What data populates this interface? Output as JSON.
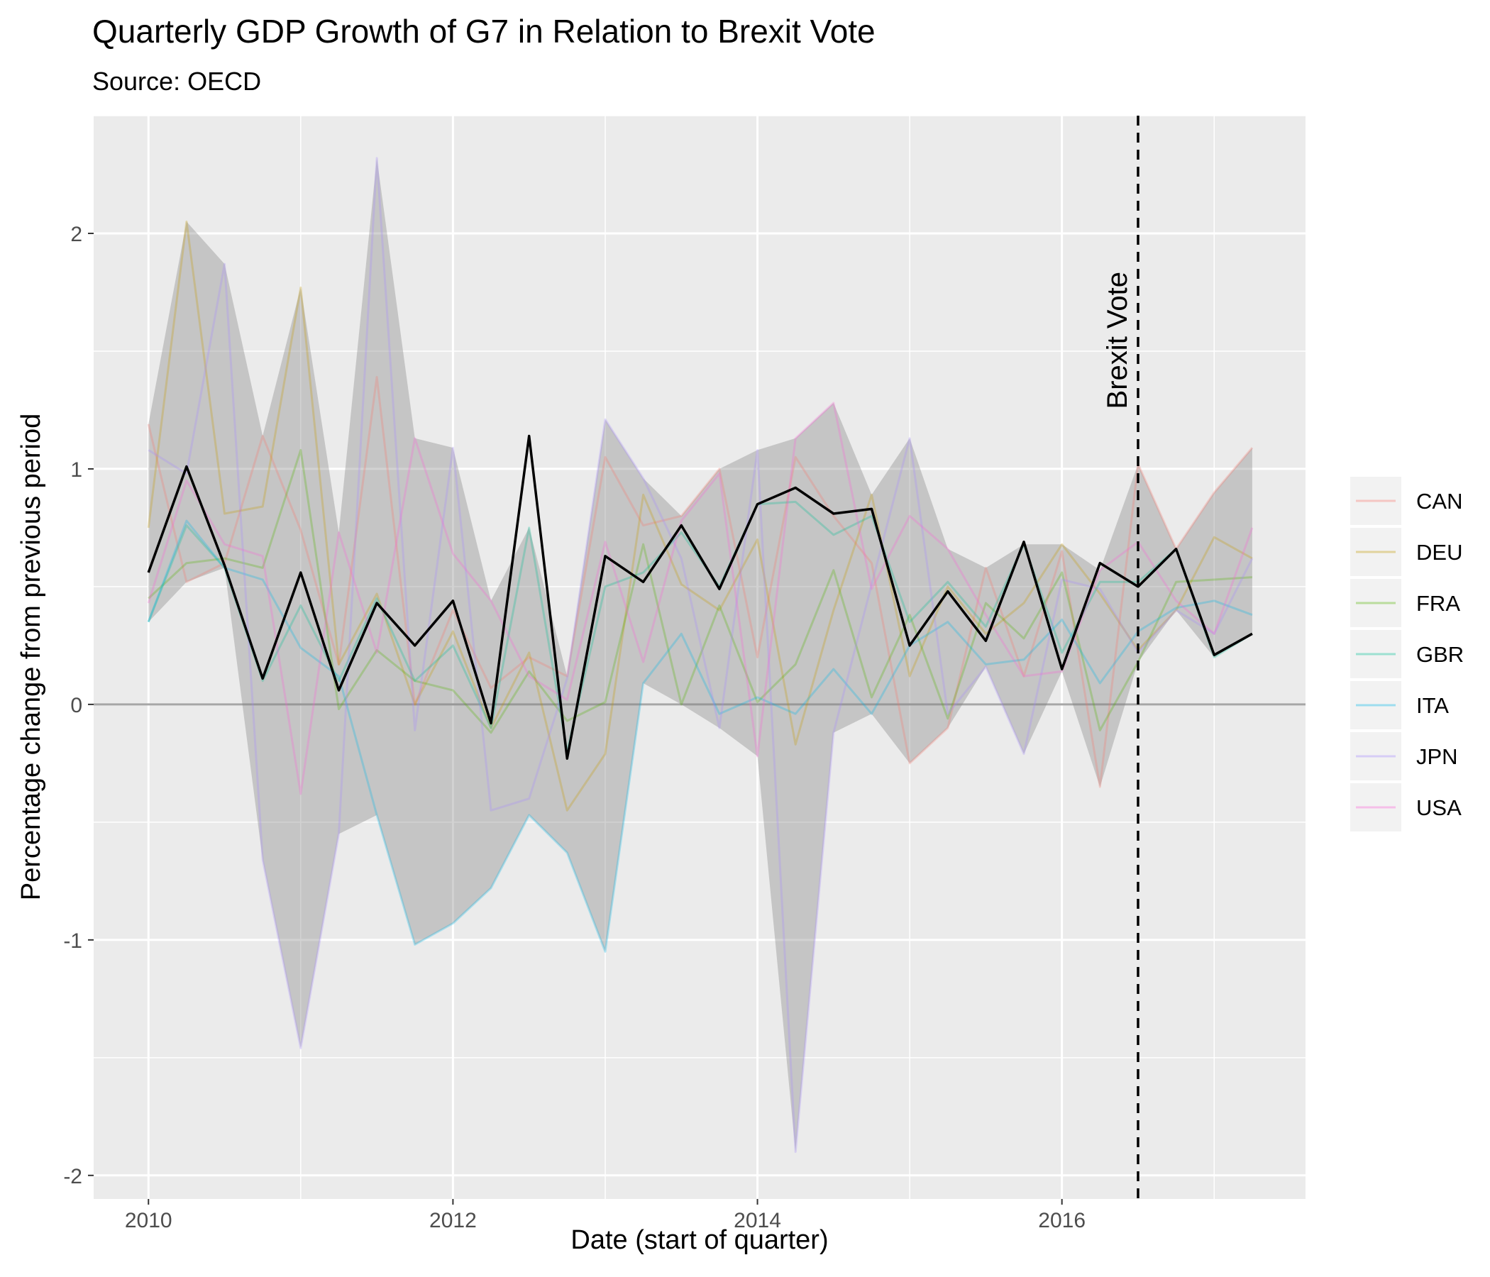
{
  "chart_data": {
    "type": "line",
    "title": "Quarterly GDP Growth of G7 in Relation to Brexit Vote",
    "subtitle": "Source: OECD",
    "xlabel": "Date (start of quarter)",
    "ylabel": "Percentage change from previous period",
    "xlim": [
      2009.64,
      2017.6
    ],
    "ylim": [
      -2.1,
      2.5
    ],
    "xticks": [
      {
        "v": 2010,
        "label": "2010"
      },
      {
        "v": 2012,
        "label": "2012"
      },
      {
        "v": 2014,
        "label": "2014"
      },
      {
        "v": 2016,
        "label": "2016"
      }
    ],
    "yticks": [
      {
        "v": -2,
        "label": "-2"
      },
      {
        "v": -1,
        "label": "-1"
      },
      {
        "v": 0,
        "label": "0"
      },
      {
        "v": 1,
        "label": "1"
      },
      {
        "v": 2,
        "label": "2"
      }
    ],
    "grid": true,
    "legend_position": "right",
    "x": [
      "2010-01-01",
      "2010-04-01",
      "2010-07-01",
      "2010-10-01",
      "2011-01-01",
      "2011-04-01",
      "2011-07-01",
      "2011-10-01",
      "2012-01-01",
      "2012-04-01",
      "2012-07-01",
      "2012-10-01",
      "2013-01-01",
      "2013-04-01",
      "2013-07-01",
      "2013-10-01",
      "2014-01-01",
      "2014-04-01",
      "2014-07-01",
      "2014-10-01",
      "2015-01-01",
      "2015-04-01",
      "2015-07-01",
      "2015-10-01",
      "2016-01-01",
      "2016-04-01",
      "2016-07-01",
      "2016-10-01",
      "2017-01-01",
      "2017-04-01"
    ],
    "series": [
      {
        "name": "CAN",
        "color": "#F8766D",
        "values": [
          1.19,
          0.52,
          0.6,
          1.14,
          0.74,
          0.17,
          1.39,
          0.0,
          0.4,
          0.07,
          0.2,
          0.12,
          1.05,
          0.76,
          0.8,
          1.0,
          0.2,
          1.05,
          0.8,
          0.6,
          -0.25,
          -0.1,
          0.58,
          0.12,
          0.65,
          -0.35,
          1.02,
          0.66,
          0.9,
          1.09
        ]
      },
      {
        "name": "DEU",
        "color": "#C49A00",
        "values": [
          0.75,
          2.05,
          0.81,
          0.84,
          1.77,
          0.17,
          0.47,
          0.0,
          0.31,
          -0.1,
          0.22,
          -0.45,
          -0.21,
          0.89,
          0.51,
          0.4,
          0.7,
          -0.17,
          0.4,
          0.89,
          0.12,
          0.5,
          0.3,
          0.43,
          0.68,
          0.47,
          0.23,
          0.4,
          0.71,
          0.62
        ]
      },
      {
        "name": "FRA",
        "color": "#53B400",
        "values": [
          0.45,
          0.6,
          0.62,
          0.58,
          1.08,
          -0.02,
          0.23,
          0.1,
          0.06,
          -0.12,
          0.14,
          -0.07,
          0.01,
          0.68,
          0.0,
          0.42,
          0.01,
          0.17,
          0.57,
          0.03,
          0.38,
          -0.06,
          0.43,
          0.28,
          0.56,
          -0.11,
          0.18,
          0.52,
          0.53,
          0.54
        ]
      },
      {
        "name": "GBR",
        "color": "#00C094",
        "values": [
          0.35,
          0.76,
          0.58,
          0.1,
          0.42,
          0.1,
          0.45,
          0.1,
          0.25,
          -0.1,
          0.75,
          -0.2,
          0.5,
          0.56,
          0.73,
          0.5,
          0.85,
          0.86,
          0.72,
          0.8,
          0.35,
          0.52,
          0.33,
          0.68,
          0.22,
          0.52,
          0.52,
          0.66,
          0.2,
          0.3
        ]
      },
      {
        "name": "ITA",
        "color": "#00B6EB",
        "values": [
          0.35,
          0.78,
          0.58,
          0.53,
          0.24,
          0.12,
          -0.47,
          -1.02,
          -0.93,
          -0.78,
          -0.47,
          -0.63,
          -1.05,
          0.09,
          0.3,
          -0.04,
          0.03,
          -0.04,
          0.15,
          -0.04,
          0.25,
          0.35,
          0.17,
          0.19,
          0.36,
          0.09,
          0.31,
          0.41,
          0.44,
          0.38
        ]
      },
      {
        "name": "JPN",
        "color": "#A58AFF",
        "values": [
          1.08,
          0.98,
          1.87,
          -0.66,
          -1.46,
          -0.55,
          2.32,
          -0.11,
          1.09,
          -0.45,
          -0.4,
          0.11,
          1.21,
          0.96,
          0.62,
          -0.1,
          1.08,
          -1.9,
          -0.12,
          0.51,
          1.13,
          -0.04,
          0.16,
          -0.21,
          0.53,
          0.49,
          0.22,
          0.4,
          0.3,
          0.62
        ]
      },
      {
        "name": "USA",
        "color": "#FB61D7",
        "values": [
          0.43,
          0.95,
          0.68,
          0.63,
          -0.38,
          0.73,
          0.22,
          1.13,
          0.64,
          0.44,
          0.12,
          0.02,
          0.69,
          0.18,
          0.78,
          0.98,
          -0.22,
          1.13,
          1.28,
          0.49,
          0.8,
          0.66,
          0.38,
          0.12,
          0.14,
          0.57,
          0.69,
          0.44,
          0.3,
          0.75
        ]
      },
      {
        "name": "",
        "color": "#000000",
        "values": [
          0.56,
          1.01,
          0.59,
          0.11,
          0.56,
          0.06,
          0.43,
          0.25,
          0.44,
          -0.08,
          1.14,
          -0.23,
          0.63,
          0.52,
          0.76,
          0.49,
          0.85,
          0.92,
          0.81,
          0.83,
          0.25,
          0.48,
          0.27,
          0.69,
          0.15,
          0.6,
          0.5,
          0.66,
          0.21,
          0.3
        ]
      }
    ],
    "band": {
      "color": "#7f7f7f",
      "description": "range between min and max of G7 series"
    },
    "annotations": [
      {
        "type": "vline",
        "x": "2016-07-01",
        "label": "Brexit Vote",
        "style": "dashed"
      }
    ],
    "colors": {
      "panel": "#EBEBEB",
      "grid": "#FFFFFF",
      "zero_line": "#a6a6a6"
    }
  }
}
